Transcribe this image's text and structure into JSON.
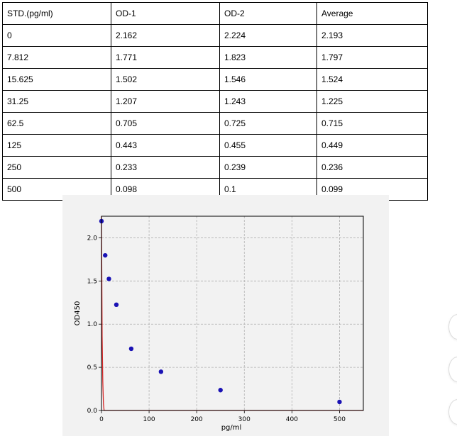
{
  "table": {
    "headers": [
      "STD.(pg/ml)",
      "OD-1",
      "OD-2",
      "Average"
    ],
    "rows": [
      [
        "0",
        "2.162",
        "2.224",
        "2.193"
      ],
      [
        "7.812",
        "1.771",
        "1.823",
        "1.797"
      ],
      [
        "15.625",
        "1.502",
        "1.546",
        "1.524"
      ],
      [
        "31.25",
        "1.207",
        "1.243",
        "1.225"
      ],
      [
        "62.5",
        "0.705",
        "0.725",
        "0.715"
      ],
      [
        "125",
        "0.443",
        "0.455",
        "0.449"
      ],
      [
        "250",
        "0.233",
        "0.239",
        "0.236"
      ],
      [
        "500",
        "0.098",
        "0.1",
        "0.099"
      ]
    ]
  },
  "chart_data": {
    "type": "scatter",
    "title": "",
    "xlabel": "pg/ml",
    "ylabel": "OD450",
    "xlim": [
      0,
      550
    ],
    "ylim": [
      0,
      2.25
    ],
    "xticks": [
      0,
      100,
      200,
      300,
      400,
      500
    ],
    "yticks": [
      0.0,
      0.5,
      1.0,
      1.5,
      2.0
    ],
    "xtick_labels": [
      "0",
      "100",
      "200",
      "300",
      "400",
      "500"
    ],
    "ytick_labels": [
      "0.0",
      "0.5",
      "1.0",
      "1.5",
      "2.0"
    ],
    "grid": true,
    "x": [
      0,
      7.812,
      15.625,
      31.25,
      62.5,
      125,
      250,
      500
    ],
    "y": [
      2.193,
      1.797,
      1.524,
      1.225,
      0.715,
      0.449,
      0.236,
      0.099
    ],
    "fit_curve": {
      "type": "4PL",
      "A": 4.3,
      "B": 0.7,
      "C": 0.55,
      "D": -0.95
    },
    "colors": {
      "points": "#1a12b4",
      "curve": "#d42424",
      "grid": "#b0b0b0",
      "panel": "#f2f2f2"
    }
  },
  "icons": [
    "scroll-circle",
    "scroll-circle",
    "scroll-circle"
  ]
}
